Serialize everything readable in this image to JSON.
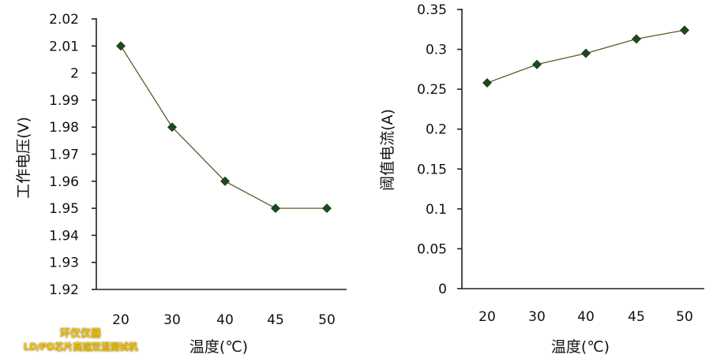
{
  "chart_data": [
    {
      "type": "line",
      "categories": [
        "20",
        "30",
        "40",
        "45",
        "50"
      ],
      "series": [
        {
          "values": [
            2.01,
            1.98,
            1.96,
            1.95,
            1.95
          ]
        }
      ],
      "ylim": [
        1.92,
        2.02
      ],
      "yticks": [
        "2.02",
        "2.01",
        "2",
        "1.99",
        "1.98",
        "1.97",
        "1.96",
        "1.95",
        "1.94",
        "1.93",
        "1.92"
      ],
      "xlabel": "温度(℃)",
      "ylabel": "工作电压(V)",
      "grid": false,
      "marker": "diamond"
    },
    {
      "type": "line",
      "categories": [
        "20",
        "30",
        "40",
        "45",
        "50"
      ],
      "series": [
        {
          "values": [
            0.258,
            0.281,
            0.295,
            0.313,
            0.324
          ]
        }
      ],
      "ylim": [
        0,
        0.35
      ],
      "yticks": [
        "0.35",
        "0.3",
        "0.25",
        "0.2",
        "0.15",
        "0.1",
        "0.05",
        "0"
      ],
      "xlabel": "温度(℃)",
      "ylabel": "阈值电流(A)",
      "grid": false,
      "marker": "diamond"
    }
  ],
  "watermark": {
    "line1": "环仪仪器",
    "line2": "LD/PD芯片高速双温测试机"
  }
}
